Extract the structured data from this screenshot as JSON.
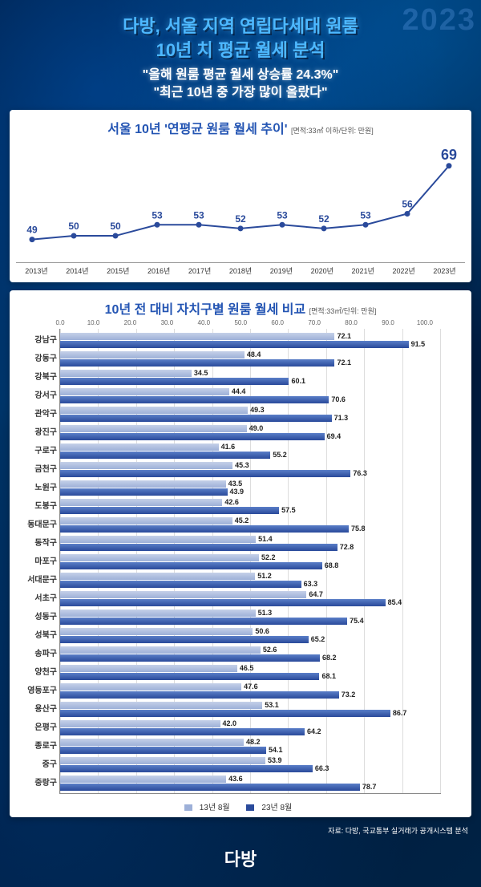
{
  "header": {
    "title_line1": "다방, 서울 지역 연립다세대 원룸",
    "title_line2": "10년 치 평균 월세 분석",
    "subtitle_line1": "\"올해 원룸 평균 월세 상승률 24.3%\"",
    "subtitle_line2": "\"최근 10년 중 가장 많이 올랐다\"",
    "bg_year": "2023"
  },
  "line_chart": {
    "title": "서울 10년 '연평균 원룸 월세 추이'",
    "unit": "[면적:33㎡ 이하/단위: 만원]",
    "years": [
      "2013년",
      "2014년",
      "2015년",
      "2016년",
      "2017년",
      "2018년",
      "2019년",
      "2020년",
      "2021년",
      "2022년",
      "2023년"
    ],
    "values": [
      49,
      50,
      50,
      53,
      53,
      52,
      53,
      52,
      53,
      56,
      69
    ],
    "y_min": 45,
    "y_max": 72,
    "line_color": "#2a4a9b",
    "marker_color": "#2a4a9b",
    "label_color": "#2a4a9b",
    "label_fontsize": 12,
    "line_width": 2,
    "marker_radius": 3.5
  },
  "bar_chart": {
    "title": "10년 전 대비 자치구별 원룸 월세 비교",
    "unit": "[면적:33㎡/단위: 만원]",
    "x_max": 100,
    "x_tick_step": 10,
    "x_ticks": [
      "0.0",
      "10.0",
      "20.0",
      "30.0",
      "40.0",
      "50.0",
      "60.0",
      "70.0",
      "80.0",
      "90.0",
      "100.0"
    ],
    "series1_label": "13년 8월",
    "series2_label": "23년 8월",
    "series1_color": "#9db0d8",
    "series2_color": "#2a4a9b",
    "districts": [
      {
        "name": "강남구",
        "v1": 72.1,
        "v2": 91.5
      },
      {
        "name": "강동구",
        "v1": 48.4,
        "v2": 72.1
      },
      {
        "name": "강북구",
        "v1": 34.5,
        "v2": 60.1
      },
      {
        "name": "강서구",
        "v1": 44.4,
        "v2": 70.6
      },
      {
        "name": "관악구",
        "v1": 49.3,
        "v2": 71.3
      },
      {
        "name": "광진구",
        "v1": 49.0,
        "v2": 69.4
      },
      {
        "name": "구로구",
        "v1": 41.6,
        "v2": 55.2
      },
      {
        "name": "금천구",
        "v1": 45.3,
        "v2": 76.3
      },
      {
        "name": "노원구",
        "v1": 43.5,
        "v2": 43.9
      },
      {
        "name": "도봉구",
        "v1": 42.6,
        "v2": 57.5
      },
      {
        "name": "동대문구",
        "v1": 45.2,
        "v2": 75.8
      },
      {
        "name": "동작구",
        "v1": 51.4,
        "v2": 72.8
      },
      {
        "name": "마포구",
        "v1": 52.2,
        "v2": 68.8
      },
      {
        "name": "서대문구",
        "v1": 51.2,
        "v2": 63.3
      },
      {
        "name": "서초구",
        "v1": 64.7,
        "v2": 85.4
      },
      {
        "name": "성동구",
        "v1": 51.3,
        "v2": 75.4
      },
      {
        "name": "성북구",
        "v1": 50.6,
        "v2": 65.2
      },
      {
        "name": "송파구",
        "v1": 52.6,
        "v2": 68.2
      },
      {
        "name": "양천구",
        "v1": 46.5,
        "v2": 68.1
      },
      {
        "name": "영등포구",
        "v1": 47.6,
        "v2": 73.2
      },
      {
        "name": "용산구",
        "v1": 53.1,
        "v2": 86.7
      },
      {
        "name": "은평구",
        "v1": 42.0,
        "v2": 64.2
      },
      {
        "name": "종로구",
        "v1": 48.2,
        "v2": 54.1
      },
      {
        "name": "중구",
        "v1": 53.9,
        "v2": 66.3
      },
      {
        "name": "중랑구",
        "v1": 43.6,
        "v2": 78.7
      }
    ]
  },
  "source": "자료: 다방, 국교통부 실거래가 공개시스템 분석",
  "logo": "다방"
}
